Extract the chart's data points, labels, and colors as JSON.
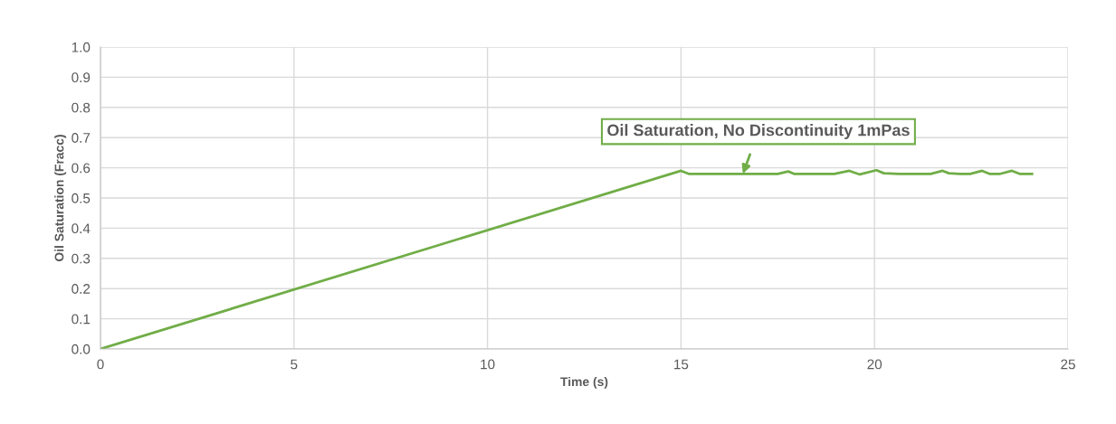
{
  "chart_data": {
    "type": "line",
    "xlabel": "Time (s)",
    "ylabel": "Oil Saturation (Fracc)",
    "x": [
      0,
      15.0,
      15.2,
      17.5,
      17.77,
      17.92,
      18.96,
      19.35,
      19.62,
      20.05,
      20.24,
      20.63,
      21.45,
      21.76,
      21.92,
      22.2,
      22.47,
      22.78,
      22.97,
      23.25,
      23.55,
      23.75,
      24.07
    ],
    "series": [
      {
        "color": "#70ad47",
        "values": [
          0,
          0.59,
          0.58,
          0.58,
          0.588,
          0.58,
          0.58,
          0.59,
          0.578,
          0.592,
          0.582,
          0.58,
          0.58,
          0.59,
          0.582,
          0.58,
          0.58,
          0.59,
          0.58,
          0.58,
          0.59,
          0.58,
          0.58
        ]
      }
    ],
    "xlim": [
      0,
      25
    ],
    "xticks": [
      0,
      5,
      10,
      15,
      20,
      25
    ],
    "ylim": [
      0,
      1.0
    ],
    "yticks": [
      {
        "value": 0,
        "label": "0.0"
      },
      {
        "value": 0.1,
        "label": "0.1"
      },
      {
        "value": 0.2,
        "label": "0.2"
      },
      {
        "value": 0.3,
        "label": "0.3"
      },
      {
        "value": 0.4,
        "label": "0.4"
      },
      {
        "value": 0.5,
        "label": "0.5"
      },
      {
        "value": 0.6,
        "label": "0.6"
      },
      {
        "value": 0.7,
        "label": "0.7"
      },
      {
        "value": 0.8,
        "label": "0.8"
      },
      {
        "value": 0.9,
        "label": "0.9"
      },
      {
        "value": 1.0,
        "label": "1.0"
      }
    ],
    "grid": true,
    "legend": false,
    "marker": "none",
    "line_style": "solid",
    "annotations": [
      {
        "text": "Oil Saturation, No Discontinuity 1mPas",
        "x": 16.6,
        "y": 0.58
      }
    ]
  }
}
